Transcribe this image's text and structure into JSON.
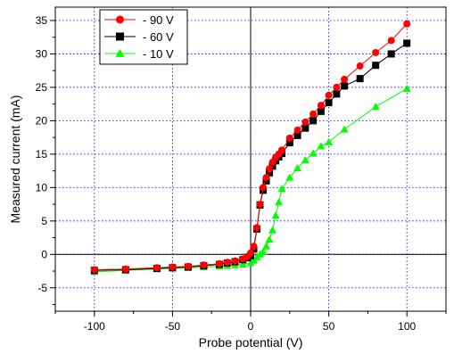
{
  "chart_data": {
    "type": "line",
    "xlabel": "Probe potential (V)",
    "ylabel": "Measured current (mA)",
    "xlim": [
      -125,
      125
    ],
    "ylim": [
      -8.5,
      37
    ],
    "xticks": [
      -100,
      -50,
      0,
      50,
      100
    ],
    "yticks": [
      -5,
      0,
      5,
      10,
      15,
      20,
      25,
      30,
      35
    ],
    "grid": true,
    "legend_position": "top-left",
    "series": [
      {
        "name": "- 90 V",
        "color": "#ff0000",
        "marker": "circle",
        "x": [
          -100,
          -80,
          -60,
          -50,
          -40,
          -30,
          -20,
          -15,
          -10,
          -5,
          -2,
          0,
          2,
          4,
          6,
          8,
          10,
          12,
          14,
          16,
          18,
          20,
          25,
          30,
          35,
          40,
          45,
          50,
          55,
          60,
          70,
          80,
          90,
          100
        ],
        "y": [
          -2.3,
          -2.2,
          -2.0,
          -1.9,
          -1.8,
          -1.6,
          -1.4,
          -1.2,
          -1.0,
          -0.7,
          -0.3,
          0.2,
          1.2,
          4.0,
          7.5,
          10.0,
          11.5,
          12.8,
          13.8,
          14.5,
          15.0,
          15.6,
          17.4,
          18.6,
          19.8,
          21.0,
          22.3,
          23.8,
          25.0,
          26.2,
          28.2,
          30.2,
          32.0,
          34.5
        ]
      },
      {
        "name": "- 60 V",
        "color": "#000000",
        "marker": "square",
        "x": [
          -100,
          -80,
          -60,
          -50,
          -40,
          -30,
          -20,
          -15,
          -10,
          -5,
          -2,
          0,
          2,
          4,
          6,
          8,
          10,
          12,
          14,
          16,
          18,
          20,
          25,
          30,
          35,
          40,
          45,
          50,
          55,
          60,
          70,
          80,
          90,
          100
        ],
        "y": [
          -2.4,
          -2.3,
          -2.1,
          -2.0,
          -1.9,
          -1.7,
          -1.5,
          -1.3,
          -1.1,
          -0.8,
          -0.5,
          -0.2,
          0.8,
          3.8,
          7.4,
          9.6,
          11.0,
          12.2,
          13.2,
          14.0,
          14.6,
          15.1,
          16.7,
          17.8,
          18.9,
          20.0,
          21.4,
          22.7,
          24.0,
          25.2,
          26.3,
          28.3,
          30.0,
          31.6
        ]
      },
      {
        "name": "- 10 V",
        "color": "#00ff00",
        "marker": "triangle",
        "x": [
          -100,
          -80,
          -60,
          -50,
          -40,
          -30,
          -20,
          -15,
          -10,
          -5,
          0,
          2,
          4,
          6,
          8,
          10,
          12,
          14,
          16,
          18,
          20,
          25,
          30,
          35,
          40,
          45,
          50,
          60,
          80,
          100
        ],
        "y": [
          -2.6,
          -2.4,
          -2.2,
          -2.1,
          -2.0,
          -1.9,
          -1.8,
          -1.7,
          -1.6,
          -1.5,
          -1.3,
          -0.9,
          -0.4,
          0.0,
          0.4,
          1.2,
          2.2,
          3.6,
          5.8,
          7.8,
          9.8,
          11.5,
          12.9,
          14.1,
          15.1,
          16.2,
          16.8,
          18.7,
          22.1,
          24.8
        ]
      }
    ]
  }
}
